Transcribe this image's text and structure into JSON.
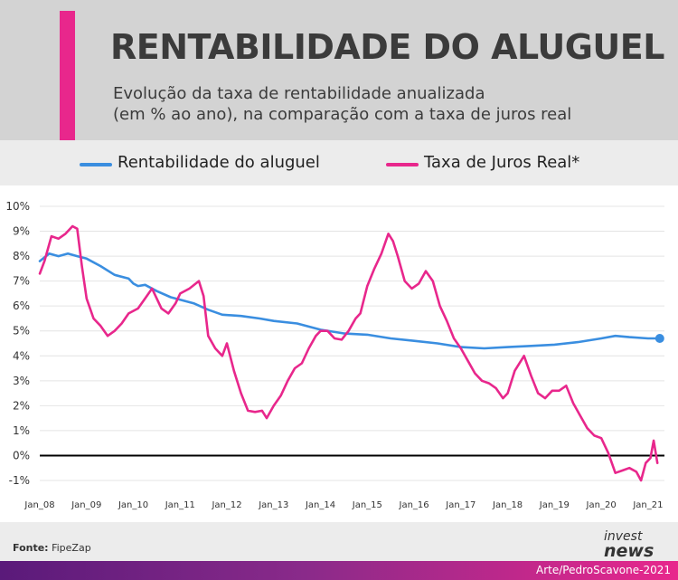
{
  "header": {
    "title": "RENTABILIDADE DO ALUGUEL",
    "subtitle_line1": "Evolução da taxa de rentabilidade anualizada",
    "subtitle_line2": "(em % ao ano), na comparação com a taxa de juros real"
  },
  "legend": {
    "series1": "Rentabilidade do aluguel",
    "series2": "Taxa de Juros Real*"
  },
  "footer": {
    "source_label": "Fonte:",
    "source_value": "FipeZap",
    "logo_top": "invest",
    "logo_bottom": "news",
    "credit": "Arte/PedroScavone-2021"
  },
  "colors": {
    "accent": "#e8278c",
    "series1": "#3a8ee0",
    "series2": "#e8278c",
    "header_bg": "#d3d3d3"
  },
  "chart_data": {
    "type": "line",
    "title": "RENTABILIDADE DO ALUGUEL",
    "xlabel": "",
    "ylabel": "",
    "ylim": [
      -1,
      10
    ],
    "xlim": [
      2008.0,
      2021.35
    ],
    "y_ticks": [
      "-1%",
      "0%",
      "1%",
      "2%",
      "3%",
      "4%",
      "5%",
      "6%",
      "7%",
      "8%",
      "9%",
      "10%"
    ],
    "x_ticks": [
      "Jan_08",
      "Jan_09",
      "Jan_10",
      "Jan_11",
      "Jan_12",
      "Jan_13",
      "Jan_14",
      "Jan_15",
      "Jan_16",
      "Jan_17",
      "Jan_18",
      "Jan_19",
      "Jan_20",
      "Jan_21"
    ],
    "grid": true,
    "zero_line": true,
    "series": [
      {
        "name": "Rentabilidade do aluguel",
        "color": "#3a8ee0",
        "points": [
          [
            2008.0,
            7.8
          ],
          [
            2008.2,
            8.1
          ],
          [
            2008.4,
            8.0
          ],
          [
            2008.6,
            8.1
          ],
          [
            2008.8,
            8.0
          ],
          [
            2009.0,
            7.9
          ],
          [
            2009.3,
            7.6
          ],
          [
            2009.6,
            7.25
          ],
          [
            2009.9,
            7.1
          ],
          [
            2010.0,
            6.9
          ],
          [
            2010.1,
            6.8
          ],
          [
            2010.25,
            6.85
          ],
          [
            2010.5,
            6.6
          ],
          [
            2010.8,
            6.35
          ],
          [
            2011.0,
            6.25
          ],
          [
            2011.3,
            6.1
          ],
          [
            2011.6,
            5.85
          ],
          [
            2011.9,
            5.65
          ],
          [
            2012.3,
            5.6
          ],
          [
            2012.7,
            5.5
          ],
          [
            2013.0,
            5.4
          ],
          [
            2013.5,
            5.3
          ],
          [
            2014.0,
            5.05
          ],
          [
            2014.5,
            4.9
          ],
          [
            2015.0,
            4.85
          ],
          [
            2015.5,
            4.7
          ],
          [
            2016.0,
            4.6
          ],
          [
            2016.5,
            4.5
          ],
          [
            2017.0,
            4.35
          ],
          [
            2017.5,
            4.3
          ],
          [
            2018.0,
            4.35
          ],
          [
            2018.5,
            4.4
          ],
          [
            2019.0,
            4.45
          ],
          [
            2019.5,
            4.55
          ],
          [
            2020.0,
            4.7
          ],
          [
            2020.3,
            4.8
          ],
          [
            2020.6,
            4.75
          ],
          [
            2021.0,
            4.7
          ],
          [
            2021.25,
            4.7
          ]
        ]
      },
      {
        "name": "Taxa de Juros Real*",
        "color": "#e8278c",
        "points": [
          [
            2008.0,
            7.3
          ],
          [
            2008.1,
            7.8
          ],
          [
            2008.25,
            8.8
          ],
          [
            2008.4,
            8.7
          ],
          [
            2008.55,
            8.9
          ],
          [
            2008.7,
            9.2
          ],
          [
            2008.8,
            9.1
          ],
          [
            2008.9,
            7.6
          ],
          [
            2009.0,
            6.3
          ],
          [
            2009.15,
            5.5
          ],
          [
            2009.3,
            5.2
          ],
          [
            2009.45,
            4.8
          ],
          [
            2009.6,
            5.0
          ],
          [
            2009.75,
            5.3
          ],
          [
            2009.9,
            5.7
          ],
          [
            2010.1,
            5.9
          ],
          [
            2010.25,
            6.3
          ],
          [
            2010.4,
            6.7
          ],
          [
            2010.5,
            6.3
          ],
          [
            2010.6,
            5.9
          ],
          [
            2010.75,
            5.7
          ],
          [
            2010.9,
            6.1
          ],
          [
            2011.0,
            6.5
          ],
          [
            2011.2,
            6.7
          ],
          [
            2011.4,
            7.0
          ],
          [
            2011.5,
            6.4
          ],
          [
            2011.6,
            4.8
          ],
          [
            2011.75,
            4.3
          ],
          [
            2011.9,
            4.0
          ],
          [
            2012.0,
            4.5
          ],
          [
            2012.15,
            3.4
          ],
          [
            2012.3,
            2.5
          ],
          [
            2012.45,
            1.8
          ],
          [
            2012.6,
            1.75
          ],
          [
            2012.75,
            1.8
          ],
          [
            2012.85,
            1.5
          ],
          [
            2013.0,
            2.0
          ],
          [
            2013.15,
            2.4
          ],
          [
            2013.3,
            3.0
          ],
          [
            2013.45,
            3.5
          ],
          [
            2013.6,
            3.7
          ],
          [
            2013.75,
            4.3
          ],
          [
            2013.9,
            4.8
          ],
          [
            2014.0,
            5.0
          ],
          [
            2014.15,
            5.0
          ],
          [
            2014.3,
            4.7
          ],
          [
            2014.45,
            4.65
          ],
          [
            2014.6,
            5.0
          ],
          [
            2014.75,
            5.5
          ],
          [
            2014.85,
            5.7
          ],
          [
            2015.0,
            6.8
          ],
          [
            2015.15,
            7.5
          ],
          [
            2015.3,
            8.1
          ],
          [
            2015.45,
            8.9
          ],
          [
            2015.55,
            8.6
          ],
          [
            2015.65,
            8.0
          ],
          [
            2015.8,
            7.0
          ],
          [
            2015.95,
            6.7
          ],
          [
            2016.1,
            6.9
          ],
          [
            2016.25,
            7.4
          ],
          [
            2016.4,
            7.0
          ],
          [
            2016.55,
            6.0
          ],
          [
            2016.7,
            5.4
          ],
          [
            2016.85,
            4.7
          ],
          [
            2017.0,
            4.3
          ],
          [
            2017.15,
            3.8
          ],
          [
            2017.3,
            3.3
          ],
          [
            2017.45,
            3.0
          ],
          [
            2017.6,
            2.9
          ],
          [
            2017.75,
            2.7
          ],
          [
            2017.9,
            2.3
          ],
          [
            2018.0,
            2.5
          ],
          [
            2018.15,
            3.4
          ],
          [
            2018.35,
            4.0
          ],
          [
            2018.5,
            3.2
          ],
          [
            2018.65,
            2.5
          ],
          [
            2018.8,
            2.3
          ],
          [
            2018.95,
            2.6
          ],
          [
            2019.1,
            2.6
          ],
          [
            2019.25,
            2.8
          ],
          [
            2019.4,
            2.1
          ],
          [
            2019.55,
            1.6
          ],
          [
            2019.7,
            1.1
          ],
          [
            2019.85,
            0.8
          ],
          [
            2020.0,
            0.7
          ],
          [
            2020.15,
            0.1
          ],
          [
            2020.3,
            -0.7
          ],
          [
            2020.45,
            -0.6
          ],
          [
            2020.6,
            -0.5
          ],
          [
            2020.75,
            -0.65
          ],
          [
            2020.85,
            -1.0
          ],
          [
            2020.95,
            -0.3
          ],
          [
            2021.05,
            -0.1
          ],
          [
            2021.12,
            0.6
          ],
          [
            2021.2,
            -0.3
          ]
        ]
      }
    ]
  }
}
